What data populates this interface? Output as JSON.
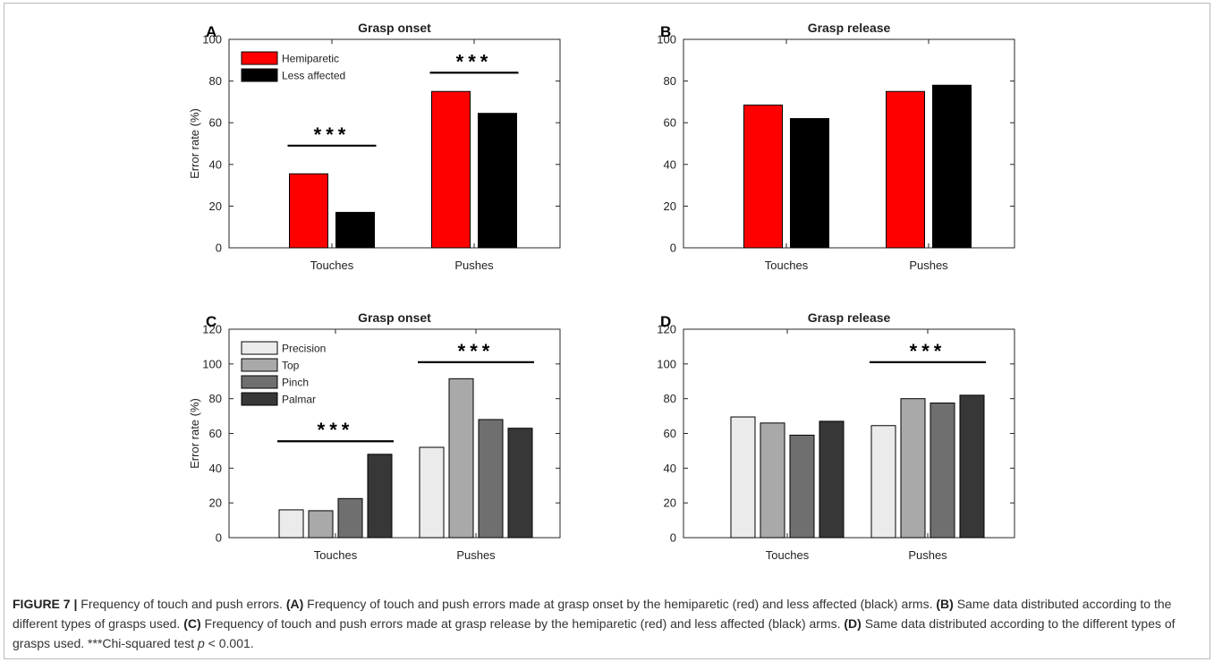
{
  "colors": {
    "hemiparetic": "#ff0000",
    "less_affected": "#000000",
    "precision": "#ebebeb",
    "top": "#a9a9a9",
    "pinch": "#6f6f6f",
    "palmar": "#373737"
  },
  "chart_data": [
    {
      "panel": "A",
      "type": "bar",
      "title": "Grasp onset",
      "ylabel": "Error rate (%)",
      "xlabel": "",
      "categories": [
        "Touches",
        "Pushes"
      ],
      "ylim": [
        0,
        100
      ],
      "yticks": [
        0,
        20,
        40,
        60,
        80,
        100
      ],
      "grid": false,
      "legend_position": "top-left",
      "series": [
        {
          "name": "Hemiparetic",
          "color": "#ff0000",
          "values": [
            35.5,
            75
          ]
        },
        {
          "name": "Less affected",
          "color": "#000000",
          "values": [
            17,
            64.5
          ]
        }
      ],
      "significance": [
        {
          "label": "***",
          "y": 49,
          "from_category": 0
        },
        {
          "label": "***",
          "y": 84,
          "from_category": 1
        }
      ]
    },
    {
      "panel": "B",
      "type": "bar",
      "title": "Grasp release",
      "ylabel": "",
      "xlabel": "",
      "categories": [
        "Touches",
        "Pushes"
      ],
      "ylim": [
        0,
        100
      ],
      "yticks": [
        0,
        20,
        40,
        60,
        80,
        100
      ],
      "grid": false,
      "series": [
        {
          "name": "",
          "color": "#ff0000",
          "values": [
            68.5,
            75
          ]
        },
        {
          "name": "",
          "color": "#000000",
          "values": [
            62,
            78
          ]
        }
      ],
      "significance": []
    },
    {
      "panel": "C",
      "type": "bar",
      "title": "Grasp onset",
      "ylabel": "Error rate (%)",
      "xlabel": "",
      "categories": [
        "Touches",
        "Pushes"
      ],
      "ylim": [
        0,
        120
      ],
      "yticks": [
        0,
        20,
        40,
        60,
        80,
        100,
        120
      ],
      "grid": false,
      "legend_position": "top-left",
      "series": [
        {
          "name": "Precision",
          "color": "#ebebeb",
          "values": [
            16,
            52
          ]
        },
        {
          "name": "Top",
          "color": "#a9a9a9",
          "values": [
            15.5,
            91.5
          ]
        },
        {
          "name": "Pinch",
          "color": "#6f6f6f",
          "values": [
            22.5,
            68
          ]
        },
        {
          "name": "Palmar",
          "color": "#373737",
          "values": [
            48,
            63
          ]
        }
      ],
      "significance": [
        {
          "label": "***",
          "y": 55.5,
          "from_category": 0
        },
        {
          "label": "***",
          "y": 101,
          "from_category": 1
        }
      ]
    },
    {
      "panel": "D",
      "type": "bar",
      "title": "Grasp release",
      "ylabel": "",
      "xlabel": "",
      "categories": [
        "Touches",
        "Pushes"
      ],
      "ylim": [
        0,
        120
      ],
      "yticks": [
        0,
        20,
        40,
        60,
        80,
        100,
        120
      ],
      "grid": false,
      "series": [
        {
          "name": "",
          "color": "#ebebeb",
          "values": [
            69.5,
            64.5
          ]
        },
        {
          "name": "",
          "color": "#a9a9a9",
          "values": [
            66,
            80
          ]
        },
        {
          "name": "",
          "color": "#6f6f6f",
          "values": [
            59,
            77.5
          ]
        },
        {
          "name": "",
          "color": "#373737",
          "values": [
            67,
            82
          ]
        }
      ],
      "significance": [
        {
          "label": "***",
          "y": 101,
          "from_category": 1
        }
      ]
    }
  ],
  "caption": {
    "figure_label": "FIGURE 7 |",
    "text_1": " Frequency of touch and push errors. ",
    "label_a": "(A)",
    "text_a": " Frequency of touch and push errors made at grasp onset by the hemiparetic (red) and less affected (black) arms. ",
    "label_b": "(B)",
    "text_b": " Same data distributed according to the different types of grasps used. ",
    "label_c": "(C)",
    "text_c": " Frequency of touch and push errors made at grasp release by the hemiparetic (red) and less affected (black) arms. ",
    "label_d": "(D)",
    "text_d": " Same data distributed according to the different types of grasps used. ***Chi-squared test ",
    "p_symbol": "p",
    "p_rest": " < 0.001."
  }
}
